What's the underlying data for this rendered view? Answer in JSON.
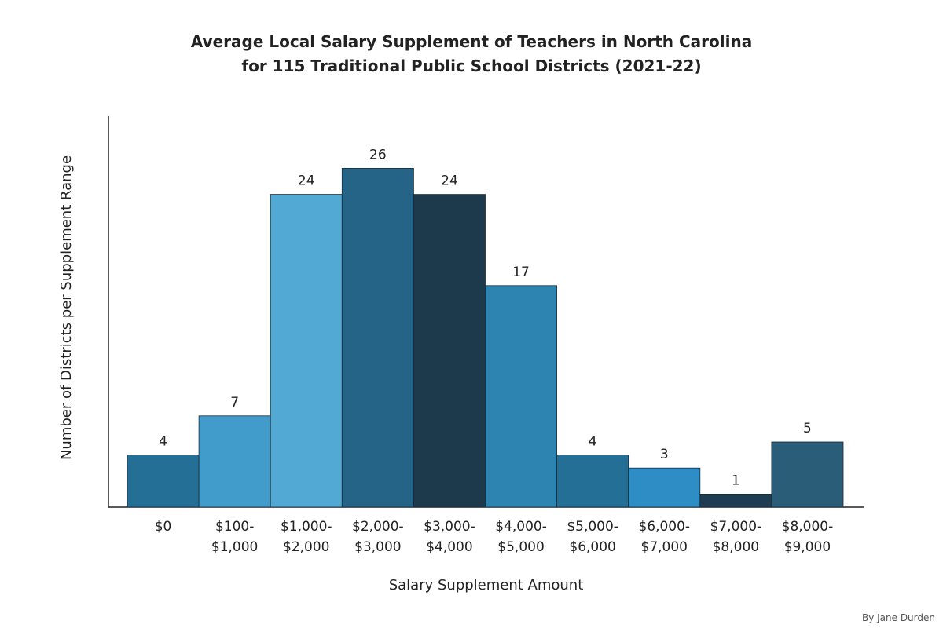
{
  "chart_data": {
    "type": "bar",
    "title": "Average Local Salary Supplement of Teachers in North Carolina\nfor 115 Traditional Public School Districts (2021-22)",
    "x_label": "Salary Supplement Amount",
    "y_label": "Number of Districts per Supplement Range",
    "credit": "By Jane Durden",
    "categories": [
      "$0",
      "$100-\n$1,000",
      "$1,000-\n$2,000",
      "$2,000-\n$3,000",
      "$3,000-\n$4,000",
      "$4,000-\n$5,000",
      "$5,000-\n$6,000",
      "$6,000-\n$7,000",
      "$7,000-\n$8,000",
      "$8,000-\n$9,000"
    ],
    "values": [
      4,
      7,
      24,
      26,
      24,
      17,
      4,
      3,
      1,
      5
    ],
    "colors": [
      "#236f96",
      "#419ccb",
      "#52a9d3",
      "#256487",
      "#1d394c",
      "#2e84b0",
      "#236f96",
      "#2e8dc4",
      "#1e3d53",
      "#2a5d78"
    ],
    "ylim": [
      0,
      30
    ]
  }
}
